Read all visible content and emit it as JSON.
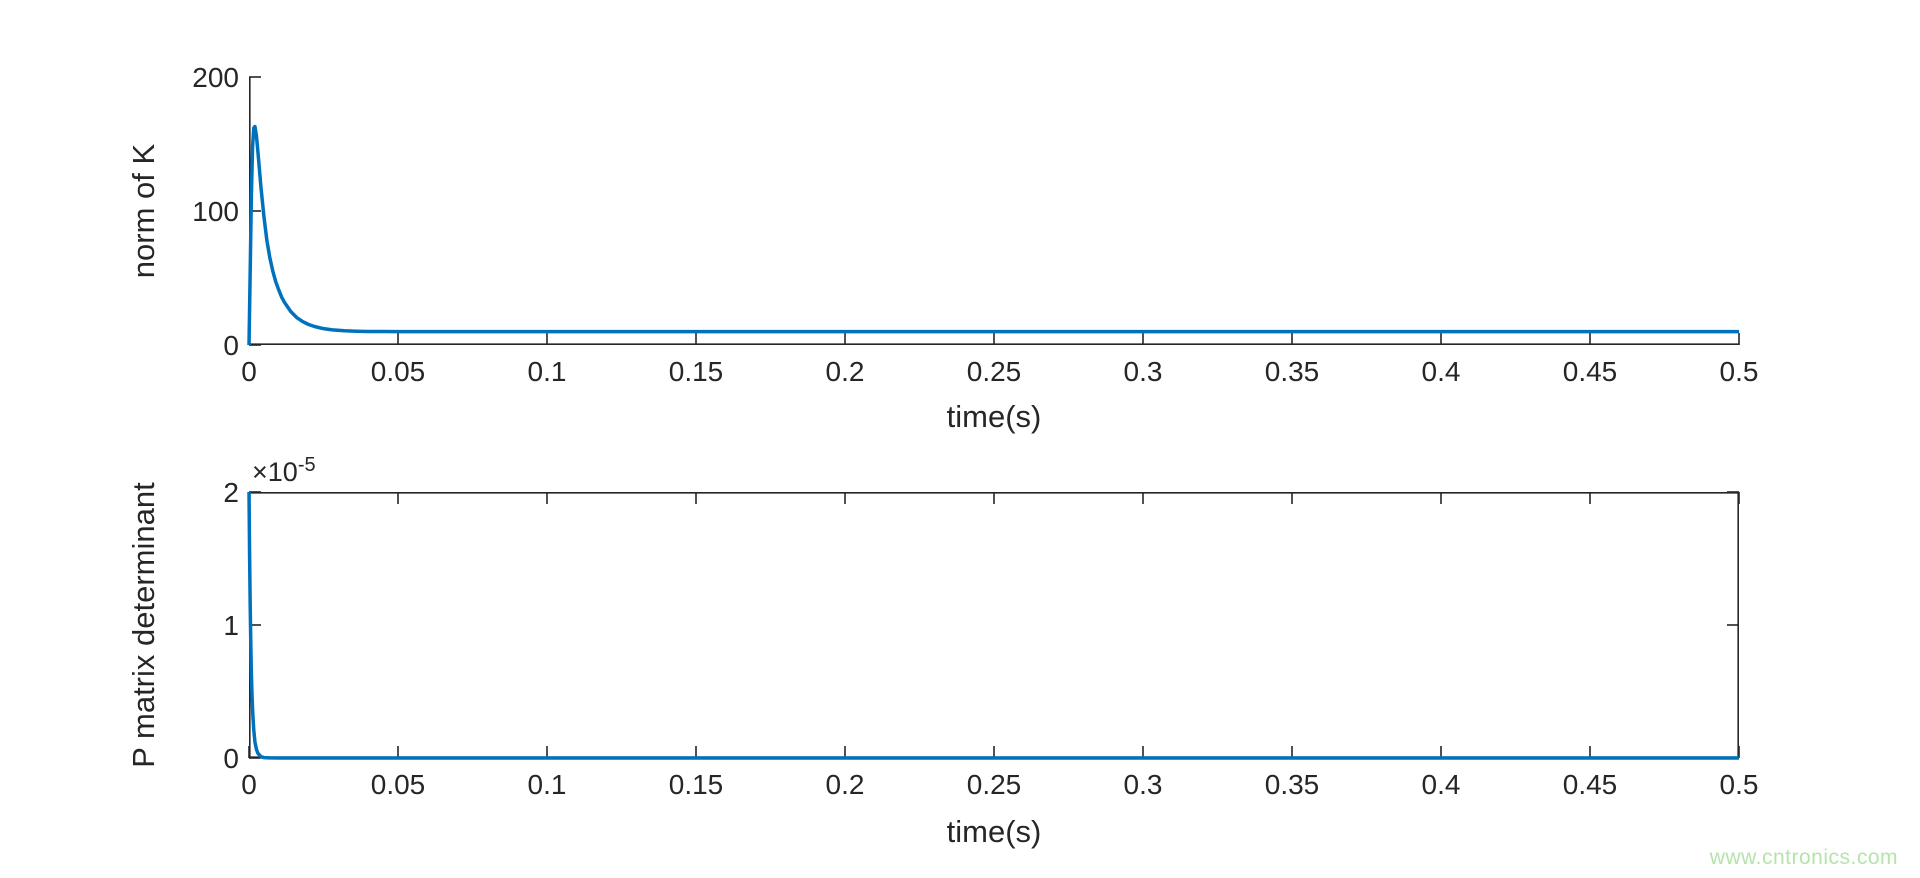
{
  "figure": {
    "background": "#ffffff",
    "axis_color": "#262626",
    "line_color": "#0072BD"
  },
  "watermark": {
    "text": "www.cntronics.com",
    "color": "#b5e3ab"
  },
  "chart_data": [
    {
      "type": "line",
      "title": "",
      "xlabel": "time(s)",
      "ylabel": "norm of K",
      "xlim": [
        0,
        0.5
      ],
      "ylim": [
        0,
        200
      ],
      "grid": false,
      "box": false,
      "legend": null,
      "line_color": "#0072BD",
      "xticks": {
        "values": [
          0,
          0.05,
          0.1,
          0.15,
          0.2,
          0.25,
          0.3,
          0.35,
          0.4,
          0.45,
          0.5
        ],
        "labels": [
          "0",
          "0.05",
          "0.1",
          "0.15",
          "0.2",
          "0.25",
          "0.3",
          "0.35",
          "0.4",
          "0.45",
          "0.5"
        ]
      },
      "yticks": {
        "values": [
          0,
          100,
          200
        ],
        "labels": [
          "0",
          "100",
          "200"
        ]
      },
      "series": [
        {
          "name": "norm of K",
          "points": [
            [
              0,
              0
            ],
            [
              0.0004,
              55
            ],
            [
              0.0008,
              112
            ],
            [
              0.0012,
              148
            ],
            [
              0.0016,
              162
            ],
            [
              0.002,
              163
            ],
            [
              0.0025,
              156
            ],
            [
              0.003,
              144
            ],
            [
              0.0035,
              131
            ],
            [
              0.004,
              118
            ],
            [
              0.0045,
              107
            ],
            [
              0.005,
              96
            ],
            [
              0.006,
              78
            ],
            [
              0.007,
              65
            ],
            [
              0.008,
              55
            ],
            [
              0.009,
              47
            ],
            [
              0.01,
              41
            ],
            [
              0.011,
              35.5
            ],
            [
              0.012,
              31.5
            ],
            [
              0.014,
              25
            ],
            [
              0.016,
              20.5
            ],
            [
              0.018,
              17.5
            ],
            [
              0.02,
              15.3
            ],
            [
              0.022,
              13.8
            ],
            [
              0.025,
              12.2
            ],
            [
              0.028,
              11.3
            ],
            [
              0.032,
              10.6
            ],
            [
              0.036,
              10.25
            ],
            [
              0.04,
              10.1
            ],
            [
              0.045,
              10.03
            ],
            [
              0.05,
              10
            ],
            [
              0.1,
              10
            ],
            [
              0.15,
              10
            ],
            [
              0.2,
              10
            ],
            [
              0.25,
              10
            ],
            [
              0.3,
              10
            ],
            [
              0.35,
              10
            ],
            [
              0.4,
              10
            ],
            [
              0.45,
              10
            ],
            [
              0.5,
              10
            ]
          ]
        }
      ]
    },
    {
      "type": "line",
      "title": "",
      "xlabel": "time(s)",
      "ylabel": "P matrix determinant",
      "xlim": [
        0,
        0.5
      ],
      "ylim": [
        0,
        2e-05
      ],
      "grid": false,
      "box": true,
      "legend": null,
      "line_color": "#0072BD",
      "y_multiplier": {
        "base": "×10",
        "exponent": "-5"
      },
      "xticks": {
        "values": [
          0,
          0.05,
          0.1,
          0.15,
          0.2,
          0.25,
          0.3,
          0.35,
          0.4,
          0.45,
          0.5
        ],
        "labels": [
          "0",
          "0.05",
          "0.1",
          "0.15",
          "0.2",
          "0.25",
          "0.3",
          "0.35",
          "0.4",
          "0.45",
          "0.5"
        ]
      },
      "yticks": {
        "values": [
          0,
          1e-05,
          2e-05
        ],
        "labels": [
          "0",
          "1",
          "2"
        ]
      },
      "series": [
        {
          "name": "P matrix determinant",
          "points": [
            [
              0,
              2e-05
            ],
            [
              0.0002,
              1.52e-05
            ],
            [
              0.0004,
              1.15e-05
            ],
            [
              0.0006,
              8.6e-06
            ],
            [
              0.0008,
              6.4e-06
            ],
            [
              0.001,
              4.8e-06
            ],
            [
              0.0013,
              3.2e-06
            ],
            [
              0.0016,
              2.1e-06
            ],
            [
              0.002,
              1.2e-06
            ],
            [
              0.0025,
              6.5e-07
            ],
            [
              0.003,
              3.5e-07
            ],
            [
              0.004,
              1e-07
            ],
            [
              0.005,
              3e-08
            ],
            [
              0.007,
              5e-09
            ],
            [
              0.01,
              0
            ],
            [
              0.05,
              0
            ],
            [
              0.1,
              0
            ],
            [
              0.15,
              0
            ],
            [
              0.2,
              0
            ],
            [
              0.25,
              0
            ],
            [
              0.3,
              0
            ],
            [
              0.35,
              0
            ],
            [
              0.4,
              0
            ],
            [
              0.45,
              0
            ],
            [
              0.5,
              0
            ]
          ]
        }
      ]
    }
  ]
}
